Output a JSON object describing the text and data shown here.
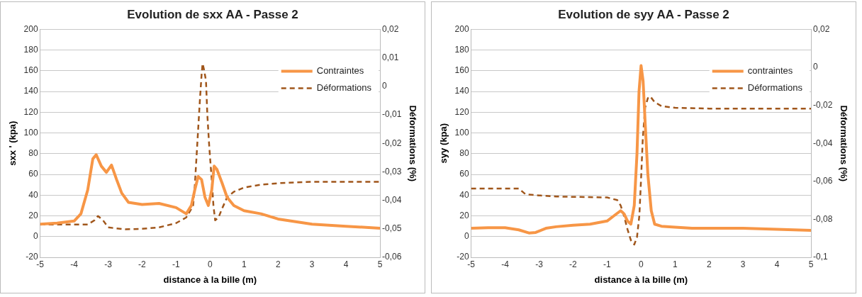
{
  "chart_data": [
    {
      "type": "line",
      "title": "Evolution de sxx AA - Passe 2",
      "xlabel": "distance à la bille (m)",
      "ylabel": "sxx ' (kpa)",
      "y2label": "Déformations (%)",
      "xlim": [
        -5,
        5
      ],
      "xticks": [
        -5,
        -4,
        -3,
        -2,
        -1,
        0,
        1,
        2,
        3,
        4,
        5
      ],
      "ylim": [
        -20,
        200
      ],
      "yticks": [
        -20,
        0,
        20,
        40,
        60,
        80,
        100,
        120,
        140,
        160,
        180,
        200
      ],
      "y2lim": [
        -0.06,
        0.02
      ],
      "y2ticks": [
        {
          "value": -0.06,
          "label": "-0,06"
        },
        {
          "value": -0.05,
          "label": "-0,05"
        },
        {
          "value": -0.04,
          "label": "-0,04"
        },
        {
          "value": -0.03,
          "label": "-0,03"
        },
        {
          "value": -0.02,
          "label": "-0,02"
        },
        {
          "value": -0.01,
          "label": "-0,01"
        },
        0,
        {
          "value": 0.01,
          "label": "0,01"
        },
        {
          "value": 0.02,
          "label": "0,02"
        }
      ],
      "grid": "y",
      "legend": "top right",
      "series": [
        {
          "name": "Contraintes",
          "color": "#f79646",
          "line_style": "solid",
          "x": [
            -5,
            -4.5,
            -4,
            -3.8,
            -3.6,
            -3.45,
            -3.35,
            -3.2,
            -3.05,
            -2.9,
            -2.75,
            -2.6,
            -2.4,
            -2,
            -1.5,
            -1,
            -0.7,
            -0.55,
            -0.45,
            -0.35,
            -0.25,
            -0.15,
            -0.05,
            0.05,
            0.12,
            0.2,
            0.35,
            0.5,
            0.7,
            1,
            1.5,
            2,
            3,
            4,
            5
          ],
          "values": [
            12,
            13,
            15,
            22,
            45,
            75,
            79,
            68,
            62,
            69,
            55,
            42,
            33,
            31,
            32,
            28,
            22,
            30,
            45,
            58,
            55,
            38,
            30,
            45,
            68,
            65,
            52,
            38,
            30,
            25,
            22,
            17,
            12,
            10,
            8
          ]
        },
        {
          "name": "Déformations",
          "color": "#a0561b",
          "line_style": "dashed",
          "axis": "y2",
          "x": [
            -5,
            -4,
            -3.6,
            -3.4,
            -3.3,
            -3.15,
            -3,
            -2.5,
            -2,
            -1.5,
            -1,
            -0.7,
            -0.5,
            -0.45,
            -0.4,
            -0.35,
            -0.3,
            -0.25,
            -0.22,
            -0.18,
            -0.12,
            -0.08,
            -0.03,
            0,
            0.05,
            0.1,
            0.15,
            0.25,
            0.35,
            0.5,
            0.7,
            1,
            1.5,
            2,
            3,
            5
          ],
          "values": [
            -0.0485,
            -0.0485,
            -0.0485,
            -0.047,
            -0.0455,
            -0.047,
            -0.0495,
            -0.0502,
            -0.05,
            -0.0495,
            -0.048,
            -0.046,
            -0.042,
            -0.035,
            -0.025,
            -0.015,
            -0.005,
            0.004,
            0.008,
            0.006,
            0.002,
            -0.01,
            -0.02,
            -0.025,
            -0.033,
            -0.042,
            -0.047,
            -0.046,
            -0.043,
            -0.039,
            -0.037,
            -0.0355,
            -0.0345,
            -0.034,
            -0.0335,
            -0.0335
          ]
        }
      ]
    },
    {
      "type": "line",
      "title": "Evolution de syy AA - Passe 2",
      "xlabel": "distance à la bille (m)",
      "ylabel": "syy (kpa)",
      "y2label": "Déformations (%)",
      "xlim": [
        -5,
        5
      ],
      "xticks": [
        -5,
        -4,
        -3,
        -2,
        -1,
        0,
        1,
        2,
        3,
        4,
        5
      ],
      "ylim": [
        -20,
        200
      ],
      "yticks": [
        -20,
        0,
        20,
        40,
        60,
        80,
        100,
        120,
        140,
        160,
        180,
        200
      ],
      "y2lim": [
        -0.1,
        0.02
      ],
      "y2ticks": [
        {
          "value": -0.1,
          "label": "-0,1"
        },
        {
          "value": -0.08,
          "label": "-0,08"
        },
        {
          "value": -0.06,
          "label": "-0,06"
        },
        {
          "value": -0.04,
          "label": "-0,04"
        },
        {
          "value": -0.02,
          "label": "-0,02"
        },
        0,
        {
          "value": 0.02,
          "label": "0,02"
        }
      ],
      "grid": "y",
      "legend": "top right",
      "series": [
        {
          "name": "contraintes",
          "color": "#f79646",
          "line_style": "solid",
          "x": [
            -5,
            -4.5,
            -4,
            -3.6,
            -3.3,
            -3.1,
            -2.8,
            -2.5,
            -2,
            -1.5,
            -1,
            -0.8,
            -0.6,
            -0.5,
            -0.4,
            -0.3,
            -0.2,
            -0.12,
            -0.06,
            0,
            0.06,
            0.12,
            0.2,
            0.3,
            0.4,
            0.6,
            1,
            1.5,
            2,
            3,
            4,
            5
          ],
          "values": [
            8,
            8.5,
            8.5,
            6.5,
            3.5,
            4,
            8,
            9.5,
            11,
            12,
            15,
            20,
            25,
            22,
            15,
            12,
            30,
            80,
            140,
            165,
            150,
            110,
            60,
            25,
            12,
            10,
            9,
            8,
            8,
            8,
            7,
            6
          ]
        },
        {
          "name": "Déformations",
          "color": "#a0561b",
          "line_style": "dashed",
          "axis": "y2",
          "x": [
            -5,
            -3.6,
            -3.4,
            -3,
            -2.5,
            -1,
            -0.7,
            -0.6,
            -0.5,
            -0.4,
            -0.3,
            -0.2,
            -0.12,
            -0.05,
            0,
            0.05,
            0.12,
            0.2,
            0.27,
            0.4,
            0.6,
            1,
            2,
            5
          ],
          "values": [
            -0.0638,
            -0.0638,
            -0.0668,
            -0.0674,
            -0.068,
            -0.0685,
            -0.0699,
            -0.0727,
            -0.0783,
            -0.0852,
            -0.091,
            -0.0933,
            -0.0894,
            -0.078,
            -0.0587,
            -0.0378,
            -0.0211,
            -0.0162,
            -0.0153,
            -0.0183,
            -0.0204,
            -0.0213,
            -0.0217,
            -0.0217
          ]
        }
      ]
    }
  ]
}
